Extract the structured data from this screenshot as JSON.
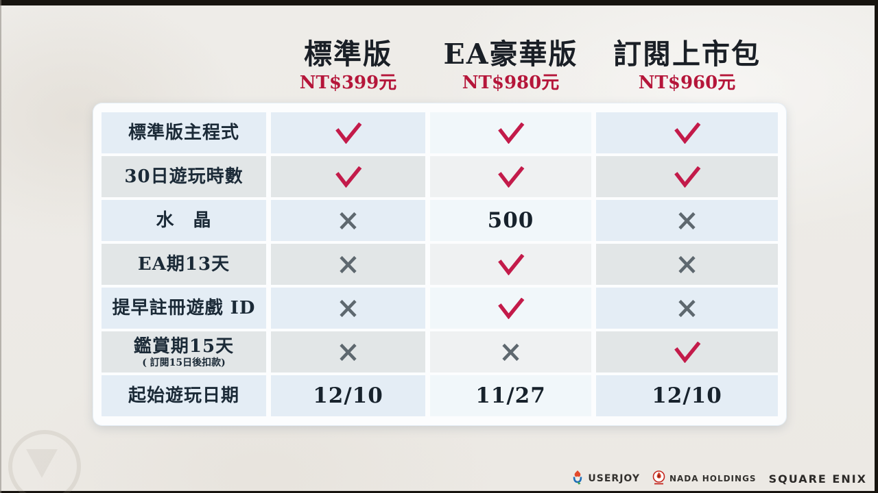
{
  "editions": [
    {
      "name": "標準版",
      "price": "NT$399元"
    },
    {
      "name": "EA豪華版",
      "price": "NT$980元"
    },
    {
      "name": "訂閱上市包",
      "price": "NT$960元"
    }
  ],
  "table": {
    "rows": [
      {
        "label": "標準版主程式",
        "sublabel": "",
        "cells": [
          "check",
          "check",
          "check"
        ]
      },
      {
        "label": "30日遊玩時數",
        "sublabel": "",
        "cells": [
          "check",
          "check",
          "check"
        ]
      },
      {
        "label": "水　晶",
        "sublabel": "",
        "cells": [
          "cross",
          "500",
          "cross"
        ]
      },
      {
        "label": "EA期13天",
        "sublabel": "",
        "cells": [
          "cross",
          "check",
          "cross"
        ]
      },
      {
        "label": "提早註冊遊戲 ID",
        "sublabel": "",
        "cells": [
          "cross",
          "check",
          "cross"
        ]
      },
      {
        "label": "鑑賞期15天",
        "sublabel": "( 訂閱15日後扣款)",
        "cells": [
          "cross",
          "cross",
          "check"
        ]
      },
      {
        "label": "起始遊玩日期",
        "sublabel": "",
        "cells": [
          "12/10",
          "11/27",
          "12/10"
        ]
      }
    ]
  },
  "footer": {
    "logos": [
      {
        "icon": "userjoy-icon",
        "label": "USERJOY"
      },
      {
        "icon": "nada-holdings-icon",
        "label": "NADA HOLDINGS"
      },
      {
        "icon": "",
        "label": "SQUARE ENIX"
      }
    ]
  },
  "colors": {
    "check": "#C31B4A",
    "cross": "#5E686F",
    "price": "#B5163A",
    "heading": "#1A1F26",
    "label": "#1B2A37",
    "value": "#17222C",
    "row_blue": "#E4EDF5",
    "row_gray": "#E2E6E7",
    "row_blue_highlight": "#F1F7FA",
    "row_gray_highlight": "#EFF1F2",
    "frame": "#17140F"
  }
}
